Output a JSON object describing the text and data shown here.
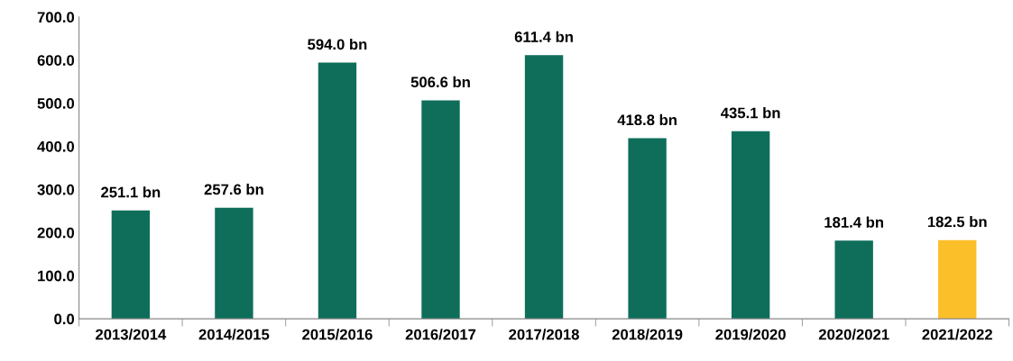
{
  "chart_data": {
    "type": "bar",
    "categories": [
      "2013/2014",
      "2014/2015",
      "2015/2016",
      "2016/2017",
      "2017/2018",
      "2018/2019",
      "2019/2020",
      "2020/2021",
      "2021/2022"
    ],
    "values": [
      251.1,
      257.6,
      594.0,
      506.6,
      611.4,
      418.8,
      435.1,
      181.4,
      182.5
    ],
    "colors": [
      "#0e6e5a",
      "#0e6e5a",
      "#0e6e5a",
      "#0e6e5a",
      "#0e6e5a",
      "#0e6e5a",
      "#0e6e5a",
      "#0e6e5a",
      "#fbbf2a"
    ],
    "value_labels": [
      "251.1 bn",
      "257.6 bn",
      "594.0 bn",
      "506.6 bn",
      "611.4 bn",
      "418.8 bn",
      "435.1 bn",
      "181.4 bn",
      "182.5 bn"
    ],
    "ylim": [
      0,
      700
    ],
    "yticks": [
      {
        "value": 0,
        "label": "0.0"
      },
      {
        "value": 100,
        "label": "100.0"
      },
      {
        "value": 200,
        "label": "200.0"
      },
      {
        "value": 300,
        "label": "300.0"
      },
      {
        "value": 400,
        "label": "400.0"
      },
      {
        "value": 500,
        "label": "500.0"
      },
      {
        "value": 600,
        "label": "600.0"
      },
      {
        "value": 700,
        "label": "700.0"
      }
    ],
    "grid": false,
    "legend": false
  }
}
